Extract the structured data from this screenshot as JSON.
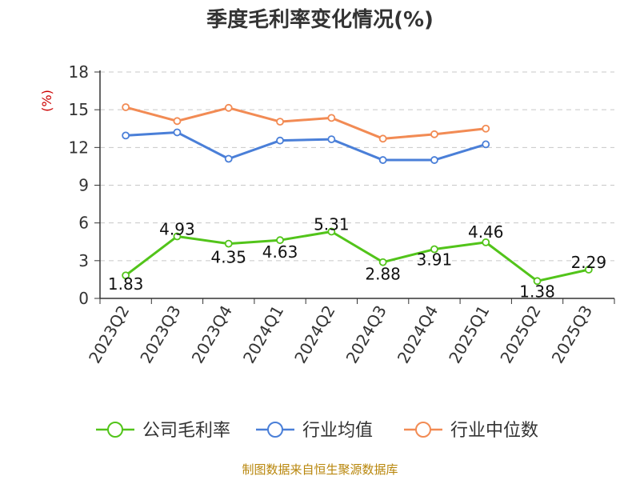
{
  "chart_data": {
    "type": "line",
    "title": "季度毛利率变化情况(%)",
    "ylabel": "(%)",
    "xlabel": "",
    "categories": [
      "2023Q2",
      "2023Q3",
      "2023Q4",
      "2024Q1",
      "2024Q2",
      "2024Q3",
      "2024Q4",
      "2025Q1",
      "2025Q2",
      "2025Q3"
    ],
    "ylim": [
      0,
      18
    ],
    "yticks": [
      0,
      3,
      6,
      9,
      12,
      15,
      18
    ],
    "grid": true,
    "legend_position": "bottom",
    "series": [
      {
        "name": "公司毛利率",
        "color": "#52c41a",
        "values": [
          1.83,
          4.93,
          4.35,
          4.63,
          5.31,
          2.88,
          3.91,
          4.46,
          1.38,
          2.29
        ],
        "labels": [
          "1.83",
          "4.93",
          "4.35",
          "4.63",
          "5.31",
          "2.88",
          "3.91",
          "4.46",
          "1.38",
          "2.29"
        ]
      },
      {
        "name": "行业均值",
        "color": "#4a7fd8",
        "values": [
          12.95,
          13.2,
          11.1,
          12.55,
          12.65,
          11.0,
          11.0,
          12.25,
          null,
          null
        ]
      },
      {
        "name": "行业中位数",
        "color": "#f28b54",
        "values": [
          15.2,
          14.1,
          15.15,
          14.05,
          14.35,
          12.7,
          13.05,
          13.5,
          null,
          null
        ]
      }
    ],
    "source": "制图数据来自恒生聚源数据库"
  }
}
